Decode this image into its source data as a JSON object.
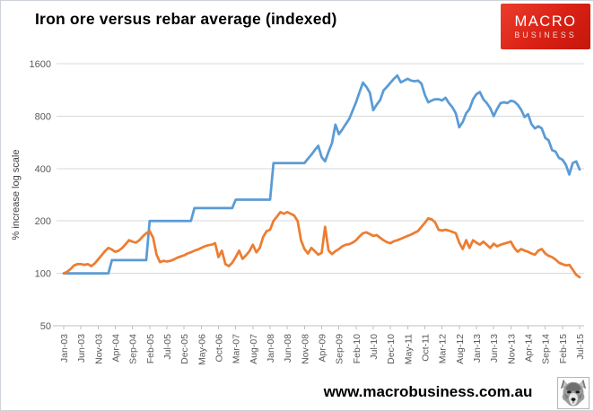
{
  "header": {
    "title": "Iron ore versus rebar average (indexed)"
  },
  "logo": {
    "line1": "MACRO",
    "line2": "BUSINESS",
    "bg_color": "#d92014",
    "text_color": "#ffffff"
  },
  "footer": {
    "url": "www.macrobusiness.com.au",
    "wolf_icon": "wolf-head-icon"
  },
  "chart_data": {
    "type": "line",
    "title": "Iron ore versus rebar average (indexed)",
    "xlabel": "",
    "ylabel": "% increase log scale",
    "y_scale": "log2",
    "ylim": [
      50,
      1600
    ],
    "y_ticks": [
      50,
      100,
      200,
      400,
      800,
      1600
    ],
    "grid": "horizontal-only",
    "legend": "none",
    "grid_color": "#d9d9d9",
    "axis_line_color": "#bfbfbf",
    "tick_text_color": "#595959",
    "x_tick_every": 5,
    "x_tick_labels": [
      "Jan-03",
      "Jun-03",
      "Nov-03",
      "Apr-04",
      "Sep-04",
      "Feb-05",
      "Jul-05",
      "Dec-05",
      "May-06",
      "Oct-06",
      "Mar-07",
      "Aug-07",
      "Jan-08",
      "Jun-08",
      "Nov-08",
      "Apr-09",
      "Sep-09",
      "Feb-10",
      "Jul-10",
      "Dec-10",
      "May-11",
      "Oct-11",
      "Mar-12",
      "Aug-12",
      "Jan-13",
      "Jun-13",
      "Nov-13",
      "Apr-14",
      "Sep-14",
      "Feb-15",
      "Jul-15"
    ],
    "x_frequency": "monthly",
    "series": [
      {
        "name": "Iron ore",
        "color": "#5b9bd5",
        "values": [
          100,
          100,
          100,
          100,
          100,
          100,
          100,
          100,
          100,
          100,
          100,
          100,
          100,
          100,
          119,
          119,
          119,
          119,
          119,
          119,
          119,
          119,
          119,
          119,
          119,
          200,
          200,
          200,
          200,
          200,
          200,
          200,
          200,
          200,
          200,
          200,
          200,
          200,
          237,
          237,
          237,
          237,
          237,
          237,
          237,
          237,
          237,
          237,
          237,
          237,
          265,
          265,
          265,
          265,
          265,
          265,
          265,
          265,
          265,
          265,
          265,
          430,
          430,
          430,
          430,
          430,
          430,
          430,
          430,
          430,
          430,
          455,
          480,
          510,
          540,
          465,
          440,
          500,
          560,
          715,
          630,
          670,
          720,
          770,
          860,
          960,
          1100,
          1245,
          1180,
          1090,
          865,
          930,
          990,
          1125,
          1180,
          1245,
          1310,
          1370,
          1250,
          1280,
          1310,
          1280,
          1270,
          1280,
          1230,
          1060,
          960,
          985,
          1000,
          1000,
          985,
          1020,
          950,
          900,
          830,
          690,
          740,
          830,
          880,
          1000,
          1070,
          1100,
          1000,
          950,
          890,
          800,
          880,
          950,
          960,
          950,
          980,
          970,
          930,
          870,
          790,
          820,
          720,
          680,
          700,
          680,
          600,
          580,
          510,
          500,
          460,
          450,
          420,
          370,
          430,
          440,
          395
        ]
      },
      {
        "name": "Rebar average",
        "color": "#ed7d31",
        "values": [
          100,
          102,
          106,
          111,
          113,
          113,
          112,
          113,
          110,
          114,
          120,
          127,
          134,
          140,
          137,
          133,
          135,
          140,
          147,
          155,
          152,
          150,
          155,
          163,
          170,
          175,
          160,
          128,
          116,
          118,
          117,
          118,
          120,
          123,
          125,
          127,
          130,
          132,
          135,
          137,
          140,
          143,
          145,
          146,
          149,
          124,
          135,
          113,
          110,
          115,
          124,
          135,
          121,
          127,
          134,
          146,
          132,
          140,
          162,
          175,
          178,
          200,
          212,
          225,
          220,
          225,
          220,
          215,
          200,
          155,
          138,
          130,
          140,
          134,
          128,
          131,
          185,
          135,
          129,
          134,
          138,
          143,
          146,
          147,
          150,
          155,
          163,
          170,
          172,
          168,
          164,
          166,
          160,
          155,
          151,
          149,
          153,
          155,
          158,
          161,
          164,
          167,
          171,
          175,
          185,
          195,
          207,
          204,
          196,
          178,
          176,
          178,
          176,
          173,
          170,
          150,
          138,
          155,
          140,
          155,
          150,
          146,
          152,
          146,
          140,
          148,
          143,
          146,
          148,
          150,
          152,
          140,
          133,
          138,
          135,
          133,
          130,
          128,
          135,
          138,
          130,
          126,
          124,
          120,
          115,
          113,
          111,
          112,
          105,
          98,
          95
        ]
      }
    ]
  }
}
